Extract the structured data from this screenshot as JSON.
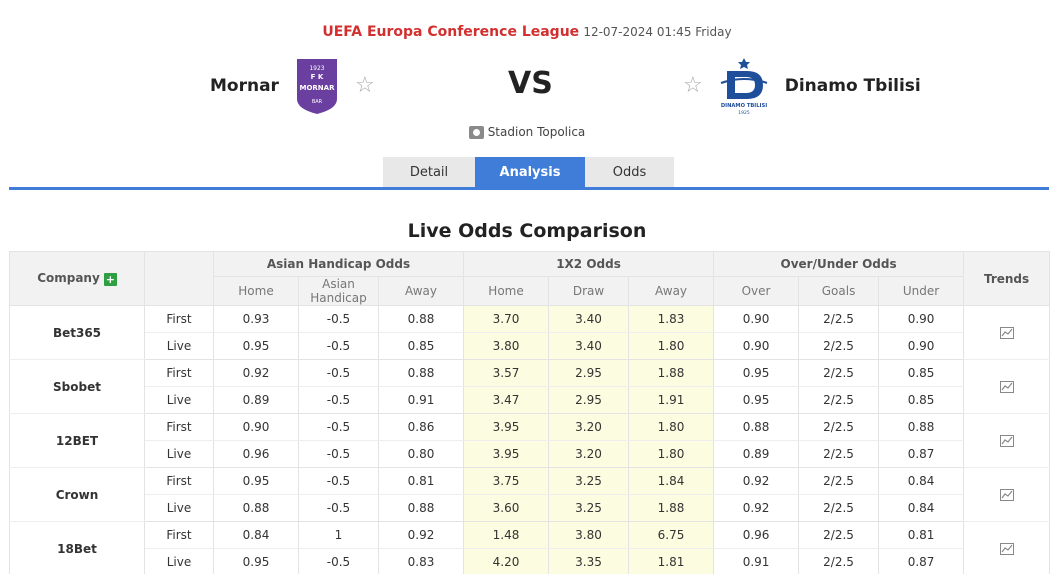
{
  "match": {
    "league": "UEFA Europa Conference League",
    "datetime": "12-07-2024 01:45 Friday",
    "home_team": "Mornar",
    "away_team": "Dinamo Tbilisi",
    "vs_label": "VS",
    "venue": "Stadion Topolica",
    "home_logo_text": [
      "1923",
      "F K",
      "MORNAR",
      "BAR"
    ],
    "away_logo_text": [
      "DINAMO TBILISI",
      "1925"
    ]
  },
  "tabs": [
    "Detail",
    "Analysis",
    "Odds"
  ],
  "active_tab": "Analysis",
  "section_title": "Live Odds Comparison",
  "table": {
    "company_header": "Company",
    "group_headers": [
      "Asian Handicap Odds",
      "1X2 Odds",
      "Over/Under Odds"
    ],
    "trends_header": "Trends",
    "sub_headers": [
      "Home",
      "Asian Handicap",
      "Away",
      "Home",
      "Draw",
      "Away",
      "Over",
      "Goals",
      "Under"
    ],
    "companies": [
      {
        "name": "Bet365",
        "rows": [
          {
            "type": "First",
            "values": [
              "0.93",
              "-0.5",
              "0.88",
              "3.70",
              "3.40",
              "1.83",
              "0.90",
              "2/2.5",
              "0.90"
            ]
          },
          {
            "type": "Live",
            "values": [
              "0.95",
              "-0.5",
              "0.85",
              "3.80",
              "3.40",
              "1.80",
              "0.90",
              "2/2.5",
              "0.90"
            ]
          }
        ]
      },
      {
        "name": "Sbobet",
        "rows": [
          {
            "type": "First",
            "values": [
              "0.92",
              "-0.5",
              "0.88",
              "3.57",
              "2.95",
              "1.88",
              "0.95",
              "2/2.5",
              "0.85"
            ]
          },
          {
            "type": "Live",
            "values": [
              "0.89",
              "-0.5",
              "0.91",
              "3.47",
              "2.95",
              "1.91",
              "0.95",
              "2/2.5",
              "0.85"
            ]
          }
        ]
      },
      {
        "name": "12BET",
        "rows": [
          {
            "type": "First",
            "values": [
              "0.90",
              "-0.5",
              "0.86",
              "3.95",
              "3.20",
              "1.80",
              "0.88",
              "2/2.5",
              "0.88"
            ]
          },
          {
            "type": "Live",
            "values": [
              "0.96",
              "-0.5",
              "0.80",
              "3.95",
              "3.20",
              "1.80",
              "0.89",
              "2/2.5",
              "0.87"
            ]
          }
        ]
      },
      {
        "name": "Crown",
        "rows": [
          {
            "type": "First",
            "values": [
              "0.95",
              "-0.5",
              "0.81",
              "3.75",
              "3.25",
              "1.84",
              "0.92",
              "2/2.5",
              "0.84"
            ]
          },
          {
            "type": "Live",
            "values": [
              "0.88",
              "-0.5",
              "0.88",
              "3.60",
              "3.25",
              "1.88",
              "0.92",
              "2/2.5",
              "0.84"
            ]
          }
        ]
      },
      {
        "name": "18Bet",
        "rows": [
          {
            "type": "First",
            "values": [
              "0.84",
              "1",
              "0.92",
              "1.48",
              "3.80",
              "6.75",
              "0.96",
              "2/2.5",
              "0.81"
            ]
          },
          {
            "type": "Live",
            "values": [
              "0.95",
              "-0.5",
              "0.83",
              "4.20",
              "3.35",
              "1.81",
              "0.91",
              "2/2.5",
              "0.87"
            ]
          }
        ]
      }
    ]
  },
  "colors": {
    "league": "#d32f2f",
    "accent": "#3f7dd8",
    "x12_highlight": "#fcfce0",
    "plus_icon": "#2ea041",
    "mornar_purple": "#6a3fa0",
    "dinamo_blue": "#1f4e9a"
  }
}
